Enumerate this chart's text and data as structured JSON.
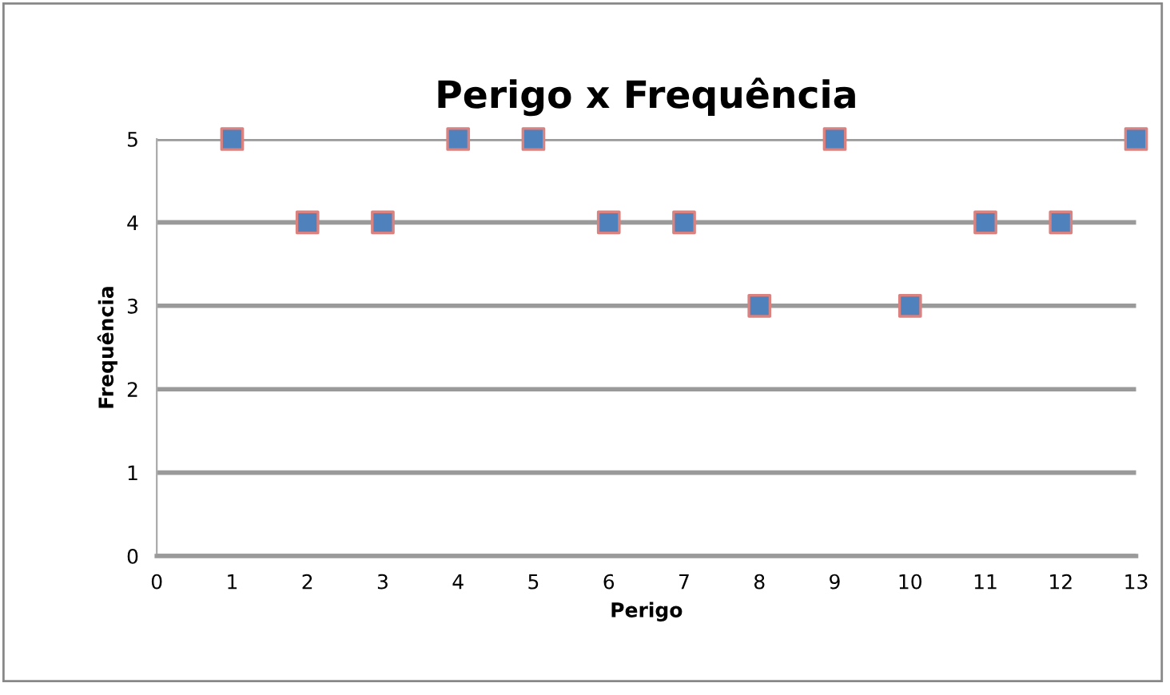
{
  "chart_data": {
    "type": "scatter",
    "title": "Perigo x Frequência",
    "xlabel": "Perigo",
    "ylabel": "Frequência",
    "x": [
      1,
      2,
      3,
      4,
      5,
      6,
      7,
      8,
      9,
      10,
      11,
      12,
      13
    ],
    "values": [
      5,
      4,
      4,
      5,
      5,
      4,
      4,
      3,
      5,
      3,
      4,
      4,
      5
    ],
    "color": "#4f81bd",
    "marker": "square",
    "xlim": [
      0,
      13
    ],
    "xticks": [
      0,
      1,
      2,
      3,
      4,
      5,
      6,
      7,
      8,
      9,
      10,
      11,
      12,
      13
    ],
    "ylim": [
      0,
      5
    ],
    "yticks": [
      0,
      1,
      2,
      3,
      4,
      5
    ],
    "grid": "y",
    "legend": false
  }
}
